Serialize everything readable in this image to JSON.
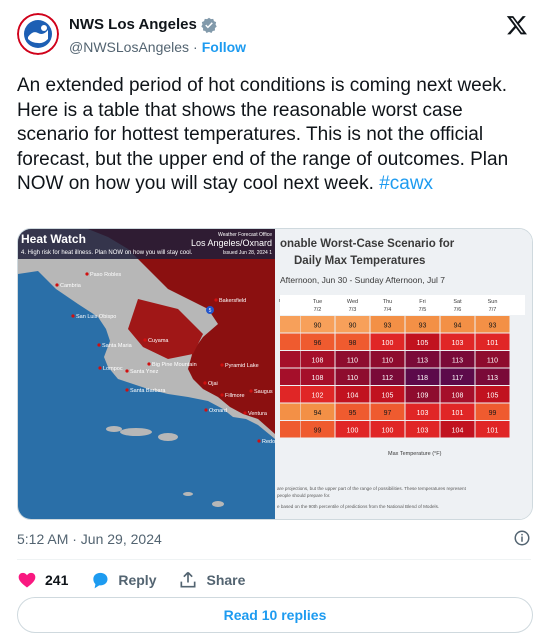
{
  "account": {
    "display_name": "NWS Los Angeles",
    "handle": "@NWSLosAngeles",
    "separator": "·",
    "follow_label": "Follow"
  },
  "tweet": {
    "text": "An extended period of hot conditions is coming next week.  Here is a table that shows the reasonable worst case scenario for hottest temperatures.  This is not the official forecast, but the upper end of the range of outcomes.  Plan NOW on how you will stay cool next week.",
    "hashtag": "#cawx",
    "timestamp": "5:12 AM · Jun 29, 2024"
  },
  "media": {
    "map": {
      "banner_title": "Heat Watch",
      "banner_sub": "4. High risk for heat illness. Plan NOW on how you will stay cool.",
      "office": "Los Angeles/Oxnard",
      "issued": "Issued Jun 28, 2024 1",
      "weather_forecast_office": "Weather Forecast Office",
      "places": [
        "Paso Robles",
        "Cambria",
        "San Luis Obispo",
        "Santa Maria",
        "Lompoc",
        "Santa Ynez",
        "Santa Barbara",
        "Cuyama",
        "Big Pine Mountain",
        "Bakersfield",
        "Pyramid Lake",
        "Ojai",
        "Fillmore",
        "Oxnard",
        "Saugus",
        "Ventura",
        "Redo"
      ],
      "route_marker": "5"
    },
    "table": {
      "title_line1": "onable Worst-Case Scenario for",
      "title_line2": "Daily Max Temperatures",
      "subtitle": "Afternoon, Jun 30 - Sunday Afternoon, Jul 7",
      "corner_label": "n",
      "columns": [
        {
          "day": "Tue",
          "date": "7/2"
        },
        {
          "day": "Wed",
          "date": "7/3"
        },
        {
          "day": "Thu",
          "date": "7/4"
        },
        {
          "day": "Fri",
          "date": "7/5"
        },
        {
          "day": "Sat",
          "date": "7/6"
        },
        {
          "day": "Sun",
          "date": "7/7"
        }
      ],
      "rows": [
        [
          90,
          90,
          93,
          93,
          94,
          93
        ],
        [
          96,
          98,
          100,
          105,
          103,
          101
        ],
        [
          108,
          110,
          110,
          113,
          113,
          110
        ],
        [
          108,
          110,
          112,
          118,
          117,
          113
        ],
        [
          102,
          104,
          105,
          109,
          108,
          105
        ],
        [
          94,
          95,
          97,
          103,
          101,
          99
        ],
        [
          99,
          100,
          100,
          103,
          104,
          101
        ]
      ],
      "xlabel": "Max Temperature (°F)",
      "footnote1": "are projections, but the upper part of the range of possibilities. These temperatures represent",
      "footnote2": "people should prepare for.",
      "footnote3": "e based on the 90th percentile of predictions from the National Blend of Models."
    }
  },
  "actions": {
    "likes_count": "241",
    "reply_label": "Reply",
    "share_label": "Share"
  },
  "replies_button": "Read 10 replies",
  "colors": {
    "accent": "#1d9bf0",
    "like": "#f91880",
    "heat_dark": "#8b0000",
    "heat_red": "#c1121f"
  }
}
